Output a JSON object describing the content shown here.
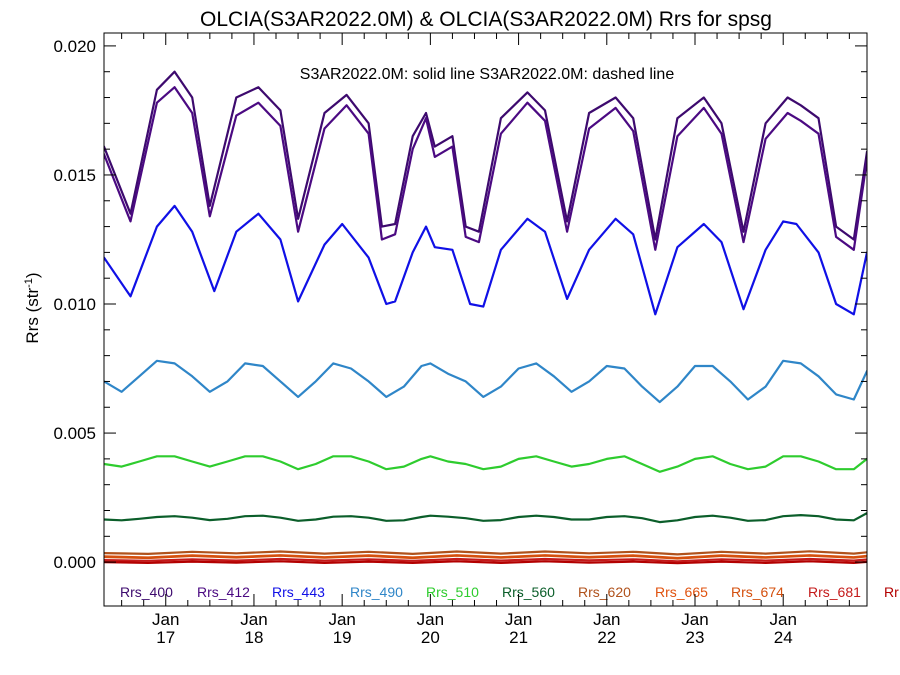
{
  "chart_data": {
    "type": "line",
    "title": "OLCIA(S3AR2022.0M) & OLCIA(S3AR2022.0M)  Rrs for spsg",
    "ylabel": "Rrs (str",
    "ylabel_sup": "-1",
    "ylabel_close": ")",
    "xlabel": "",
    "annotation": "S3AR2022.0M: solid line   S3AR2022.0M: dashed line",
    "ylim": [
      -0.0017,
      0.0205
    ],
    "xlim": [
      16.3,
      24.95
    ],
    "grid": false,
    "legend_placement": "bottom inside plot",
    "y_ticks": [
      0.0,
      0.005,
      0.01,
      0.015,
      0.02
    ],
    "y_tick_labels": [
      "0.000",
      "0.005",
      "0.010",
      "0.015",
      "0.020"
    ],
    "x_ticks": [
      {
        "x": 17,
        "month": "Jan",
        "day": "17"
      },
      {
        "x": 18,
        "month": "Jan",
        "day": "18"
      },
      {
        "x": 19,
        "month": "Jan",
        "day": "19"
      },
      {
        "x": 20,
        "month": "Jan",
        "day": "20"
      },
      {
        "x": 21,
        "month": "Jan",
        "day": "21"
      },
      {
        "x": 22,
        "month": "Jan",
        "day": "22"
      },
      {
        "x": 23,
        "month": "Jan",
        "day": "23"
      },
      {
        "x": 24,
        "month": "Jan",
        "day": "24"
      }
    ],
    "legend": [
      {
        "label": "Rrs_400",
        "color": "#3d0a6e"
      },
      {
        "label": "Rrs_412",
        "color": "#4b0a82"
      },
      {
        "label": "Rrs_443",
        "color": "#1010e6"
      },
      {
        "label": "Rrs_490",
        "color": "#2f86c8"
      },
      {
        "label": "Rrs_510",
        "color": "#2ecc2e"
      },
      {
        "label": "Rrs_560",
        "color": "#0b5e2a"
      },
      {
        "label": "Rrs_620",
        "color": "#b0521c"
      },
      {
        "label": "Rrs_665",
        "color": "#e0520e"
      },
      {
        "label": "Rrs_674",
        "color": "#d4500e"
      },
      {
        "label": "Rrs_681",
        "color": "#c41a1a"
      },
      {
        "label": "Rr",
        "color": "#b30000"
      }
    ],
    "series": [
      {
        "name": "Rrs_400",
        "color": "#3d0a6e",
        "style": "solid",
        "x": [
          16.3,
          16.6,
          16.9,
          17.1,
          17.3,
          17.5,
          17.8,
          18.05,
          18.3,
          18.5,
          18.8,
          19.05,
          19.3,
          19.45,
          19.6,
          19.8,
          19.95,
          20.05,
          20.25,
          20.4,
          20.55,
          20.8,
          21.1,
          21.3,
          21.55,
          21.8,
          22.1,
          22.3,
          22.55,
          22.8,
          23.1,
          23.3,
          23.55,
          23.8,
          24.05,
          24.2,
          24.4,
          24.6,
          24.8,
          24.95
        ],
        "y": [
          0.0161,
          0.0135,
          0.0183,
          0.019,
          0.018,
          0.0138,
          0.018,
          0.0184,
          0.0175,
          0.0133,
          0.0174,
          0.0181,
          0.017,
          0.013,
          0.0131,
          0.0165,
          0.0174,
          0.0161,
          0.0165,
          0.013,
          0.0128,
          0.0172,
          0.0182,
          0.0175,
          0.0132,
          0.0174,
          0.018,
          0.0172,
          0.0125,
          0.0172,
          0.018,
          0.017,
          0.0128,
          0.017,
          0.018,
          0.0177,
          0.0172,
          0.013,
          0.0125,
          0.0159
        ]
      },
      {
        "name": "Rrs_412",
        "color": "#4b0a82",
        "style": "dashed",
        "x": [
          16.3,
          16.6,
          16.9,
          17.1,
          17.3,
          17.5,
          17.8,
          18.05,
          18.3,
          18.5,
          18.8,
          19.05,
          19.3,
          19.45,
          19.6,
          19.8,
          19.95,
          20.05,
          20.25,
          20.4,
          20.55,
          20.8,
          21.1,
          21.3,
          21.55,
          21.8,
          22.1,
          22.3,
          22.55,
          22.8,
          23.1,
          23.3,
          23.55,
          23.8,
          24.05,
          24.2,
          24.4,
          24.6,
          24.8,
          24.95
        ],
        "y": [
          0.0158,
          0.0132,
          0.0178,
          0.0184,
          0.0174,
          0.0134,
          0.0173,
          0.0178,
          0.0169,
          0.0128,
          0.0168,
          0.0177,
          0.0166,
          0.0125,
          0.0127,
          0.016,
          0.0172,
          0.0157,
          0.0161,
          0.0126,
          0.0124,
          0.0166,
          0.0178,
          0.0171,
          0.0128,
          0.0168,
          0.0176,
          0.0167,
          0.0121,
          0.0165,
          0.0176,
          0.0166,
          0.0124,
          0.0164,
          0.0174,
          0.0171,
          0.0166,
          0.0126,
          0.0121,
          0.0156
        ]
      },
      {
        "name": "Rrs_443",
        "color": "#1010e6",
        "style": "solid",
        "x": [
          16.3,
          16.6,
          16.9,
          17.1,
          17.3,
          17.55,
          17.8,
          18.05,
          18.3,
          18.5,
          18.8,
          19.0,
          19.3,
          19.5,
          19.6,
          19.8,
          19.95,
          20.05,
          20.25,
          20.45,
          20.6,
          20.8,
          21.1,
          21.3,
          21.55,
          21.8,
          22.1,
          22.3,
          22.55,
          22.8,
          23.1,
          23.3,
          23.55,
          23.8,
          24.0,
          24.15,
          24.4,
          24.6,
          24.8,
          24.95
        ],
        "y": [
          0.0118,
          0.0103,
          0.013,
          0.0138,
          0.0128,
          0.0105,
          0.0128,
          0.0135,
          0.0125,
          0.0101,
          0.0123,
          0.0131,
          0.0118,
          0.01,
          0.0101,
          0.012,
          0.013,
          0.0122,
          0.0121,
          0.01,
          0.0099,
          0.0121,
          0.0133,
          0.0128,
          0.0102,
          0.0121,
          0.0133,
          0.0127,
          0.0096,
          0.0122,
          0.0131,
          0.0124,
          0.0098,
          0.0121,
          0.0132,
          0.0131,
          0.012,
          0.01,
          0.0096,
          0.012
        ]
      },
      {
        "name": "Rrs_490",
        "color": "#2f86c8",
        "style": "solid",
        "x": [
          16.3,
          16.5,
          16.7,
          16.9,
          17.1,
          17.3,
          17.5,
          17.7,
          17.9,
          18.1,
          18.3,
          18.5,
          18.7,
          18.9,
          19.1,
          19.3,
          19.5,
          19.7,
          19.9,
          20.0,
          20.2,
          20.4,
          20.6,
          20.8,
          21.0,
          21.2,
          21.4,
          21.6,
          21.8,
          22.0,
          22.2,
          22.4,
          22.6,
          22.8,
          23.0,
          23.2,
          23.4,
          23.6,
          23.8,
          24.0,
          24.2,
          24.4,
          24.6,
          24.8,
          24.95
        ],
        "y": [
          0.007,
          0.0066,
          0.0072,
          0.0078,
          0.0077,
          0.0072,
          0.0066,
          0.007,
          0.0077,
          0.0076,
          0.007,
          0.0064,
          0.007,
          0.0077,
          0.0075,
          0.007,
          0.0064,
          0.0068,
          0.0076,
          0.0077,
          0.0073,
          0.007,
          0.0064,
          0.0068,
          0.0075,
          0.0077,
          0.0072,
          0.0066,
          0.007,
          0.0076,
          0.0075,
          0.0068,
          0.0062,
          0.0068,
          0.0076,
          0.0076,
          0.007,
          0.0063,
          0.0068,
          0.0078,
          0.0077,
          0.0072,
          0.0065,
          0.0063,
          0.0074
        ]
      },
      {
        "name": "Rrs_510",
        "color": "#2ecc2e",
        "style": "solid",
        "x": [
          16.3,
          16.5,
          16.7,
          16.9,
          17.1,
          17.3,
          17.5,
          17.7,
          17.9,
          18.1,
          18.3,
          18.5,
          18.7,
          18.9,
          19.1,
          19.3,
          19.5,
          19.7,
          19.9,
          20.0,
          20.2,
          20.4,
          20.6,
          20.8,
          21.0,
          21.2,
          21.4,
          21.6,
          21.8,
          22.0,
          22.2,
          22.4,
          22.6,
          22.8,
          23.0,
          23.2,
          23.4,
          23.6,
          23.8,
          24.0,
          24.2,
          24.4,
          24.6,
          24.8,
          24.95
        ],
        "y": [
          0.0038,
          0.0037,
          0.0039,
          0.0041,
          0.0041,
          0.0039,
          0.0037,
          0.0039,
          0.0041,
          0.0041,
          0.0039,
          0.0036,
          0.0038,
          0.0041,
          0.0041,
          0.0039,
          0.0036,
          0.0037,
          0.004,
          0.0041,
          0.0039,
          0.0038,
          0.0036,
          0.0037,
          0.004,
          0.0041,
          0.0039,
          0.0037,
          0.0038,
          0.004,
          0.0041,
          0.0038,
          0.0035,
          0.0037,
          0.004,
          0.0041,
          0.0038,
          0.0036,
          0.0037,
          0.0041,
          0.0041,
          0.0039,
          0.0036,
          0.0036,
          0.004
        ]
      },
      {
        "name": "Rrs_560",
        "color": "#0b5e2a",
        "style": "solid",
        "x": [
          16.3,
          16.5,
          16.7,
          16.9,
          17.1,
          17.3,
          17.5,
          17.7,
          17.9,
          18.1,
          18.3,
          18.5,
          18.7,
          18.9,
          19.1,
          19.3,
          19.5,
          19.7,
          19.9,
          20.0,
          20.2,
          20.4,
          20.6,
          20.8,
          21.0,
          21.2,
          21.4,
          21.6,
          21.8,
          22.0,
          22.2,
          22.4,
          22.6,
          22.8,
          23.0,
          23.2,
          23.4,
          23.6,
          23.8,
          24.0,
          24.2,
          24.4,
          24.6,
          24.8,
          24.95
        ],
        "y": [
          0.00165,
          0.00162,
          0.00168,
          0.00175,
          0.00178,
          0.00172,
          0.00163,
          0.00168,
          0.00178,
          0.0018,
          0.00172,
          0.0016,
          0.00165,
          0.00176,
          0.00178,
          0.00172,
          0.0016,
          0.00162,
          0.00175,
          0.0018,
          0.00176,
          0.0017,
          0.0016,
          0.00163,
          0.00175,
          0.0018,
          0.00175,
          0.00165,
          0.00165,
          0.00175,
          0.00178,
          0.0017,
          0.00155,
          0.00162,
          0.00175,
          0.0018,
          0.00172,
          0.0016,
          0.00163,
          0.00178,
          0.00182,
          0.00178,
          0.00165,
          0.00162,
          0.0019
        ]
      },
      {
        "name": "Rrs_620",
        "color": "#b0521c",
        "style": "solid",
        "x": [
          16.3,
          16.8,
          17.3,
          17.8,
          18.3,
          18.8,
          19.3,
          19.8,
          20.3,
          20.8,
          21.3,
          21.8,
          22.3,
          22.8,
          23.3,
          23.8,
          24.3,
          24.8,
          24.95
        ],
        "y": [
          0.00035,
          0.00032,
          0.0004,
          0.00034,
          0.00041,
          0.00033,
          0.0004,
          0.00032,
          0.00041,
          0.00033,
          0.00041,
          0.00034,
          0.0004,
          0.0003,
          0.0004,
          0.00033,
          0.00042,
          0.00033,
          0.00038
        ]
      },
      {
        "name": "Rrs_665",
        "color": "#e0520e",
        "style": "solid",
        "x": [
          16.3,
          16.8,
          17.3,
          17.8,
          18.3,
          18.8,
          19.3,
          19.8,
          20.3,
          20.8,
          21.3,
          21.8,
          22.3,
          22.8,
          23.3,
          23.8,
          24.3,
          24.8,
          24.95
        ],
        "y": [
          0.00022,
          0.00018,
          0.00026,
          0.0002,
          0.00027,
          0.00019,
          0.00026,
          0.00018,
          0.00027,
          0.00019,
          0.00027,
          0.0002,
          0.00026,
          0.00016,
          0.00026,
          0.00019,
          0.00027,
          0.00019,
          0.00024
        ]
      },
      {
        "name": "Rrs_674",
        "color": "#d4500e",
        "style": "solid",
        "x": [
          16.3,
          16.8,
          17.3,
          17.8,
          18.3,
          18.8,
          19.3,
          19.8,
          20.3,
          20.8,
          21.3,
          21.8,
          22.3,
          22.8,
          23.3,
          23.8,
          24.3,
          24.8,
          24.95
        ],
        "y": [
          0.0002,
          0.00016,
          0.00024,
          0.00018,
          0.00025,
          0.00017,
          0.00024,
          0.00016,
          0.00025,
          0.00017,
          0.00025,
          0.00018,
          0.00024,
          0.00014,
          0.00024,
          0.00017,
          0.00025,
          0.00017,
          0.00022
        ]
      },
      {
        "name": "Rrs_681",
        "color": "#c41a1a",
        "style": "solid",
        "x": [
          16.3,
          16.8,
          17.3,
          17.8,
          18.3,
          18.8,
          19.3,
          19.8,
          20.3,
          20.8,
          21.3,
          21.8,
          22.3,
          22.8,
          23.3,
          23.8,
          24.3,
          24.8,
          24.95
        ],
        "y": [
          8e-05,
          5e-05,
          0.00011,
          6e-05,
          0.00012,
          6e-05,
          0.00011,
          5e-05,
          0.00012,
          6e-05,
          0.00012,
          7e-05,
          0.00011,
          3e-05,
          0.00011,
          6e-05,
          0.00012,
          6e-05,
          0.0001
        ]
      },
      {
        "name": "Rr",
        "color": "#b30000",
        "style": "solid",
        "x": [
          16.3,
          16.8,
          17.3,
          17.8,
          18.3,
          18.8,
          19.3,
          19.8,
          20.3,
          20.8,
          21.3,
          21.8,
          22.3,
          22.8,
          23.3,
          23.8,
          24.3,
          24.8,
          24.95
        ],
        "y": [
          0.0,
          -3e-05,
          2e-05,
          -2e-05,
          3e-05,
          -3e-05,
          2e-05,
          -3e-05,
          3e-05,
          -3e-05,
          3e-05,
          -2e-05,
          2e-05,
          -4e-05,
          2e-05,
          -3e-05,
          3e-05,
          -3e-05,
          1e-05
        ]
      }
    ]
  }
}
